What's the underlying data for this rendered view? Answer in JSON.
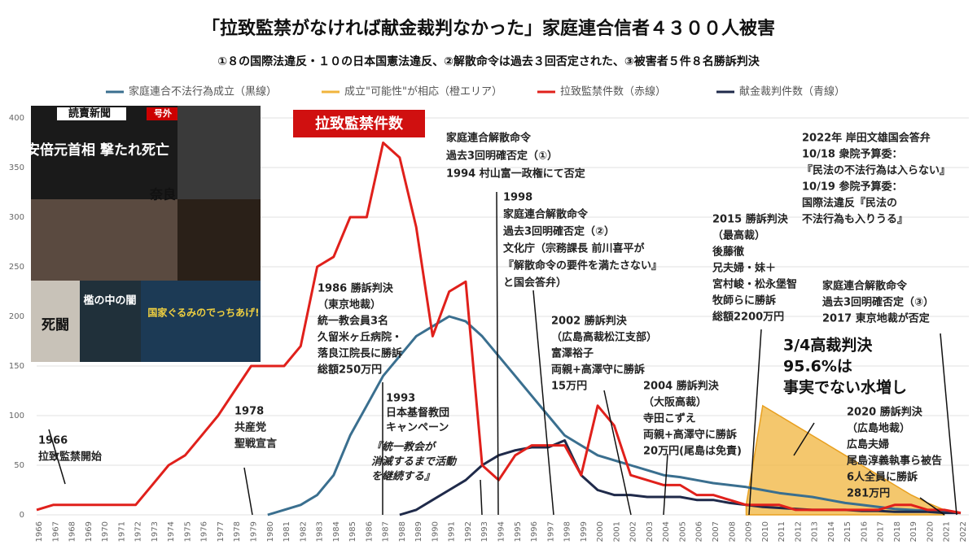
{
  "chart_data": {
    "type": "line",
    "title": "「拉致監禁がなければ献金裁判なかった」家庭連合信者４３００人被害",
    "subtitle": "①８の国際法違反・１０の日本国憲法違反、②解散命令は過去３回否定された、③被害者５件８名勝訴判決",
    "categories": [
      "1966",
      "1967",
      "1968",
      "1969",
      "1970",
      "1971",
      "1972",
      "1973",
      "1974",
      "1975",
      "1976",
      "1977",
      "1978",
      "1979",
      "1980",
      "1981",
      "1982",
      "1983",
      "1984",
      "1985",
      "1986",
      "1987",
      "1988",
      "1989",
      "1990",
      "1991",
      "1992",
      "1993",
      "1994",
      "1995",
      "1996",
      "1997",
      "1998",
      "1999",
      "2000",
      "2001",
      "2002",
      "2003",
      "2004",
      "2005",
      "2006",
      "2007",
      "2008",
      "2009",
      "2010",
      "2011",
      "2012",
      "2013",
      "2014",
      "2015",
      "2016",
      "2017",
      "2018",
      "2019",
      "2020",
      "2021",
      "2022"
    ],
    "ylim": [
      0,
      400
    ],
    "yticks": [
      0,
      50,
      100,
      150,
      200,
      250,
      300,
      350,
      400
    ],
    "grid": true,
    "series": [
      {
        "name": "家庭連合不法行為成立（黒線）",
        "color": "#3a6f8f",
        "kind": "line",
        "values": [
          null,
          null,
          null,
          null,
          null,
          null,
          null,
          null,
          null,
          null,
          null,
          null,
          null,
          null,
          0,
          5,
          10,
          20,
          40,
          80,
          110,
          140,
          160,
          180,
          190,
          200,
          195,
          180,
          160,
          140,
          120,
          100,
          80,
          70,
          60,
          55,
          50,
          45,
          40,
          38,
          35,
          32,
          30,
          28,
          25,
          22,
          20,
          18,
          15,
          12,
          10,
          8,
          6,
          5,
          4,
          3,
          2
        ]
      },
      {
        "name": "成立\"可能性\"が相応（橙エリア）",
        "color": "#f0b43c",
        "kind": "area",
        "values": [
          null,
          null,
          null,
          null,
          null,
          null,
          null,
          null,
          null,
          null,
          null,
          null,
          null,
          null,
          null,
          null,
          null,
          null,
          null,
          null,
          null,
          null,
          null,
          null,
          null,
          null,
          null,
          null,
          null,
          null,
          null,
          null,
          null,
          null,
          null,
          null,
          null,
          null,
          null,
          null,
          null,
          null,
          null,
          10,
          110,
          100,
          90,
          80,
          70,
          60,
          50,
          40,
          30,
          20,
          12,
          5,
          null
        ]
      },
      {
        "name": "拉致監禁件数（赤線）",
        "color": "#e0201b",
        "kind": "line",
        "values": [
          5,
          10,
          10,
          10,
          10,
          10,
          10,
          30,
          50,
          60,
          80,
          100,
          125,
          150,
          150,
          150,
          170,
          250,
          260,
          300,
          300,
          375,
          360,
          290,
          180,
          225,
          235,
          50,
          35,
          60,
          70,
          70,
          70,
          40,
          110,
          90,
          40,
          35,
          30,
          30,
          20,
          20,
          15,
          10,
          10,
          10,
          5,
          5,
          5,
          5,
          5,
          5,
          10,
          10,
          5,
          5,
          2
        ]
      },
      {
        "name": "献金裁判件数（青線）",
        "color": "#1f2a4a",
        "kind": "line",
        "values": [
          null,
          null,
          null,
          null,
          null,
          null,
          null,
          null,
          null,
          null,
          null,
          null,
          null,
          null,
          null,
          null,
          null,
          null,
          null,
          null,
          null,
          null,
          0,
          5,
          15,
          25,
          35,
          50,
          60,
          65,
          68,
          68,
          75,
          40,
          25,
          20,
          20,
          18,
          18,
          18,
          15,
          15,
          12,
          10,
          8,
          7,
          6,
          5,
          5,
          5,
          4,
          4,
          3,
          3,
          3,
          2,
          2
        ]
      }
    ],
    "callout": "拉致監禁件数",
    "inset_texts": [
      "読賣新聞",
      "号外",
      "安倍元首相 撃たれ死亡",
      "奈良",
      "死闘",
      "檻の中の闇",
      "国家ぐるみのでっちあげ!"
    ],
    "annotations": [
      {
        "lines": [
          "1966",
          "拉致監禁開始"
        ]
      },
      {
        "lines": [
          "1978",
          "共産党",
          "聖戦宣言"
        ]
      },
      {
        "lines": [
          "1986 勝訴判決",
          "（東京地裁）",
          "統一教会員3名",
          "久留米ヶ丘病院・",
          "落良江院長に勝訴",
          "総額250万円"
        ]
      },
      {
        "lines": [
          "1993",
          "日本基督教団",
          "キャンペーン"
        ]
      },
      {
        "lines": [
          "『統一教会が",
          "消滅するまで活動",
          "を継続する』"
        ]
      },
      {
        "lines": [
          "家庭連合解散命令",
          "過去3回明確否定（①）",
          "1994 村山富一政権にて否定"
        ]
      },
      {
        "lines": [
          "1998",
          "家庭連合解散命令",
          "過去3回明確否定（②）",
          "文化庁（宗務課長 前川喜平が",
          "『解散命令の要件を満たさない』",
          "と国会答弁）"
        ]
      },
      {
        "lines": [
          "2002 勝訴判決",
          "（広島高裁松江支部）",
          "富澤裕子",
          "両親+高澤守に勝訴",
          "15万円"
        ]
      },
      {
        "lines": [
          "2004 勝訴判決",
          "（大阪高裁）",
          "寺田こずえ",
          "両親+高澤守に勝訴",
          "20万円(尾島は免責)"
        ]
      },
      {
        "lines": [
          "2015 勝訴判決",
          "（最高裁）",
          "後藤徹",
          "兄夫婦・妹＋",
          "宮村峻・松永堡智",
          "牧師らに勝訴",
          "総額2200万円"
        ]
      },
      {
        "lines": [
          "2022年 岸田文雄国会答弁",
          "10/18 衆院予算委：",
          "『民法の不法行為は入らない』",
          "10/19 参院予算委：",
          "国際法違反『民法の",
          "不法行為も入りうる』"
        ]
      },
      {
        "lines": [
          "家庭連合解散命令",
          "過去3回明確否定（③）",
          "2017 東京地裁が否定"
        ]
      },
      {
        "lines": [
          "3/4高裁判決",
          "95.6%は",
          "事実でない水増し"
        ]
      },
      {
        "lines": [
          "2020 勝訴判決",
          "（広島地裁）",
          "広島夫婦",
          "尾島淳義執事ら被告",
          "6人全員に勝訴",
          "281万円"
        ]
      }
    ]
  }
}
